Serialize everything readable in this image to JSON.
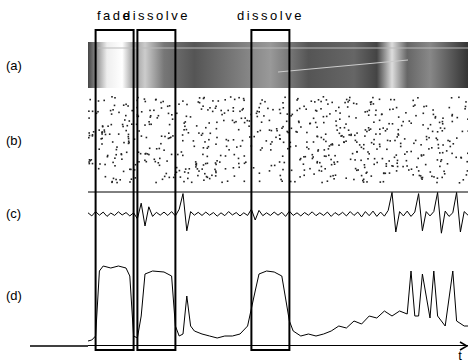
{
  "figure": {
    "event_labels": [
      {
        "label": "fade",
        "span": [
          2,
          12
        ]
      },
      {
        "label": "dissolve",
        "span": [
          13,
          23
        ]
      },
      {
        "label": "dissolve",
        "span": [
          43,
          53
        ]
      }
    ],
    "panel_labels": [
      "(a)",
      "(b)",
      "(c)",
      "(d)"
    ],
    "time_label": "t"
  },
  "chart_data": [
    {
      "type": "line",
      "color": "#000000",
      "grid": false,
      "tick_labels": false,
      "xlim": [
        0,
        100
      ],
      "ylim": [
        -1,
        1
      ],
      "x": [
        0,
        1,
        2,
        3,
        4,
        5,
        6,
        7,
        8,
        9,
        10,
        11,
        12,
        13,
        14,
        15,
        16,
        17,
        18,
        19,
        20,
        21,
        22,
        23,
        24,
        25,
        26,
        27,
        28,
        29,
        30,
        31,
        32,
        33,
        34,
        35,
        36,
        37,
        38,
        39,
        40,
        41,
        42,
        43,
        44,
        45,
        46,
        47,
        48,
        49,
        50,
        51,
        52,
        53,
        54,
        55,
        56,
        57,
        58,
        59,
        60,
        61,
        62,
        63,
        64,
        65,
        66,
        67,
        68,
        69,
        70,
        71,
        72,
        73,
        74,
        75,
        76,
        77,
        78,
        79,
        80,
        81,
        82,
        83,
        84,
        85,
        86,
        87,
        88,
        89,
        90,
        91,
        92,
        93,
        94,
        95,
        96,
        97,
        98,
        99,
        100
      ],
      "values": [
        0.05,
        -0.08,
        0.1,
        -0.05,
        0.08,
        -0.1,
        0.04,
        -0.06,
        0.09,
        -0.04,
        0.06,
        -0.08,
        0.05,
        -0.2,
        0.45,
        -0.5,
        0.3,
        -0.1,
        0.07,
        -0.05,
        0.08,
        -0.06,
        0.1,
        -0.08,
        0.2,
        0.85,
        -0.7,
        0.1,
        -0.05,
        0.07,
        -0.06,
        0.08,
        -0.05,
        0.06,
        -0.09,
        0.05,
        -0.07,
        0.1,
        -0.04,
        0.06,
        -0.08,
        0.05,
        -0.06,
        0.2,
        -0.25,
        0.15,
        -0.07,
        0.05,
        -0.06,
        0.08,
        -0.05,
        0.07,
        -0.1,
        0.12,
        -0.06,
        0.05,
        -0.08,
        0.06,
        -0.05,
        0.09,
        -0.07,
        0.05,
        -0.06,
        0.08,
        -0.1,
        0.06,
        -0.05,
        0.07,
        -0.08,
        0.1,
        -0.06,
        0.08,
        -0.12,
        0.1,
        -0.07,
        0.12,
        -0.1,
        0.08,
        -0.09,
        0.15,
        0.9,
        -0.75,
        0.1,
        -0.08,
        0.12,
        -0.1,
        0.08,
        0.85,
        -0.7,
        0.1,
        -0.08,
        0.1,
        0.9,
        -0.8,
        0.12,
        -0.1,
        0.05,
        0.9,
        -0.75,
        0.1,
        -0.05
      ]
    },
    {
      "type": "line",
      "color": "#000000",
      "grid": false,
      "tick_labels": false,
      "xlim": [
        0,
        100
      ],
      "ylim": [
        0,
        1
      ],
      "x": [
        0,
        1,
        2,
        3,
        4,
        6,
        8,
        10,
        11,
        12,
        13,
        14,
        15,
        17,
        20,
        22,
        23,
        24,
        25,
        26,
        27,
        28,
        30,
        32,
        34,
        36,
        38,
        40,
        42,
        44,
        45,
        47,
        49,
        51,
        53,
        54,
        56,
        58,
        60,
        62,
        64,
        66,
        68,
        70,
        72,
        74,
        76,
        78,
        80,
        82,
        84,
        85,
        86,
        87,
        88,
        90,
        91,
        92,
        94,
        96,
        97,
        99,
        100
      ],
      "values": [
        0.05,
        0.06,
        0.1,
        0.75,
        0.8,
        0.78,
        0.8,
        0.78,
        0.7,
        0.1,
        0.08,
        0.3,
        0.72,
        0.75,
        0.74,
        0.7,
        0.2,
        0.1,
        0.12,
        0.5,
        0.2,
        0.15,
        0.12,
        0.1,
        0.08,
        0.1,
        0.1,
        0.12,
        0.2,
        0.55,
        0.72,
        0.75,
        0.74,
        0.7,
        0.25,
        0.15,
        0.1,
        0.12,
        0.1,
        0.12,
        0.15,
        0.2,
        0.18,
        0.25,
        0.22,
        0.3,
        0.28,
        0.35,
        0.3,
        0.35,
        0.32,
        0.75,
        0.3,
        0.3,
        0.72,
        0.28,
        0.75,
        0.3,
        0.2,
        0.75,
        0.25,
        0.2,
        0.2
      ]
    }
  ]
}
